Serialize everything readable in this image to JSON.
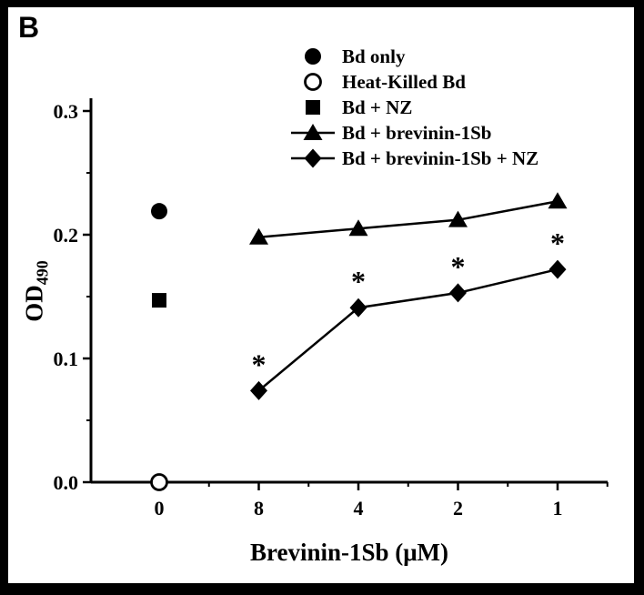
{
  "panel_label": "B",
  "axes": {
    "x_title": "Brevinin-1Sb (μM)",
    "y_title_main": "OD",
    "y_title_sub": "490"
  },
  "chart_data": {
    "type": "line",
    "title": "",
    "xlabel": "Brevinin-1Sb (μM)",
    "ylabel": "OD490",
    "x_categories": [
      "0",
      "8",
      "4",
      "2",
      "1"
    ],
    "y_ticks": [
      0,
      0.1,
      0.2,
      0.3
    ],
    "y_tick_labels": [
      "0.0",
      "0.1",
      "0.2",
      "0.3"
    ],
    "ylim": [
      0,
      0.3
    ],
    "grid": false,
    "legend_position": "top-right-inside",
    "series": [
      {
        "name": "Bd only",
        "marker": "filled-circle",
        "line": false,
        "points": [
          {
            "cat": "0",
            "y": 0.219
          }
        ]
      },
      {
        "name": "Heat-Killed Bd",
        "marker": "open-circle",
        "line": false,
        "points": [
          {
            "cat": "0",
            "y": 0.0
          }
        ]
      },
      {
        "name": "Bd + NZ",
        "marker": "filled-square",
        "line": false,
        "points": [
          {
            "cat": "0",
            "y": 0.147
          }
        ]
      },
      {
        "name": "Bd + brevinin-1Sb",
        "marker": "filled-triangle",
        "line": true,
        "points": [
          {
            "cat": "8",
            "y": 0.198
          },
          {
            "cat": "4",
            "y": 0.205
          },
          {
            "cat": "2",
            "y": 0.212
          },
          {
            "cat": "1",
            "y": 0.227
          }
        ]
      },
      {
        "name": "Bd + brevinin-1Sb + NZ",
        "marker": "filled-diamond",
        "line": true,
        "points": [
          {
            "cat": "8",
            "y": 0.074,
            "annotation": "*"
          },
          {
            "cat": "4",
            "y": 0.141,
            "annotation": "*"
          },
          {
            "cat": "2",
            "y": 0.153,
            "annotation": "*"
          },
          {
            "cat": "1",
            "y": 0.172,
            "annotation": "*"
          }
        ]
      }
    ]
  },
  "colors": {
    "foreground": "#000000",
    "background": "#ffffff",
    "frame": "#000000"
  }
}
